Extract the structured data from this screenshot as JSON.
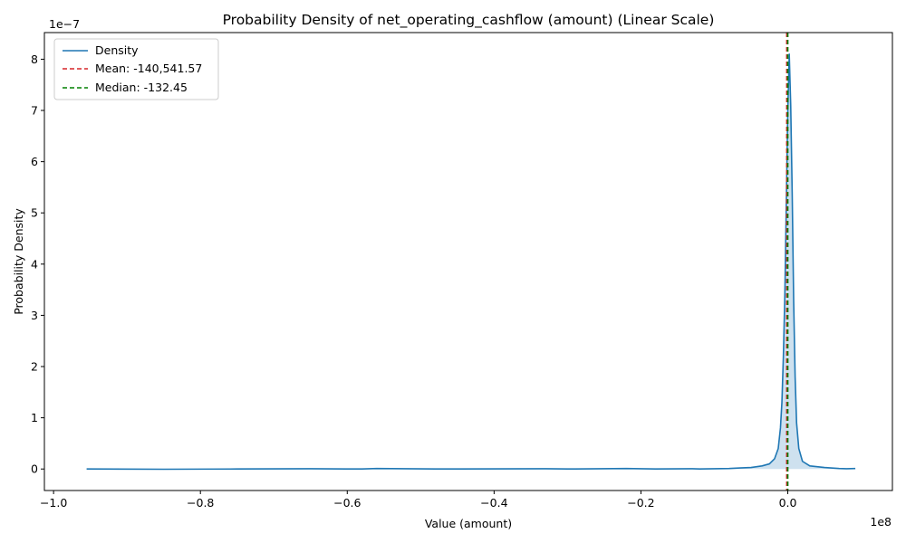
{
  "chart_data": {
    "type": "line",
    "title": "Probability Density of net_operating_cashflow (amount) (Linear Scale)",
    "xlabel": "Value (amount)",
    "ylabel": "Probability Density",
    "x_offset_text": "1e8",
    "y_offset_text": "1e−7",
    "xlim": [
      -1.0125,
      0.1425
    ],
    "ylim": [
      -0.42,
      8.52
    ],
    "x_ticks": [
      -1.0,
      -0.8,
      -0.6,
      -0.4,
      -0.2,
      0.0
    ],
    "x_tick_labels": [
      "−1.0",
      "−0.8",
      "−0.6",
      "−0.4",
      "−0.2",
      "0.0"
    ],
    "y_ticks": [
      0,
      1,
      2,
      3,
      4,
      5,
      6,
      7,
      8
    ],
    "y_tick_labels": [
      "0",
      "1",
      "2",
      "3",
      "4",
      "5",
      "6",
      "7",
      "8"
    ],
    "grid": false,
    "legend_position": "top-left",
    "series": [
      {
        "name": "Density",
        "color": "#1f77b4",
        "fill": true,
        "points": [
          [
            -0.955,
            0.0
          ],
          [
            -0.85,
            -0.005
          ],
          [
            -0.75,
            0.0
          ],
          [
            -0.65,
            0.005
          ],
          [
            -0.58,
            0.0
          ],
          [
            -0.56,
            0.01
          ],
          [
            -0.48,
            0.0
          ],
          [
            -0.33,
            0.005
          ],
          [
            -0.3,
            0.0
          ],
          [
            -0.22,
            0.01
          ],
          [
            -0.18,
            0.0
          ],
          [
            -0.13,
            0.005
          ],
          [
            -0.12,
            0.0
          ],
          [
            -0.08,
            0.01
          ],
          [
            -0.065,
            0.02
          ],
          [
            -0.05,
            0.03
          ],
          [
            -0.035,
            0.06
          ],
          [
            -0.025,
            0.1
          ],
          [
            -0.018,
            0.2
          ],
          [
            -0.013,
            0.4
          ],
          [
            -0.01,
            0.8
          ],
          [
            -0.008,
            1.3
          ],
          [
            -0.006,
            2.2
          ],
          [
            -0.004,
            3.4
          ],
          [
            -0.002,
            5.2
          ],
          [
            0.0,
            7.0
          ],
          [
            0.002,
            8.1
          ],
          [
            0.004,
            7.1
          ],
          [
            0.006,
            5.4
          ],
          [
            0.008,
            3.3
          ],
          [
            0.01,
            1.8
          ],
          [
            0.012,
            0.9
          ],
          [
            0.015,
            0.4
          ],
          [
            0.02,
            0.15
          ],
          [
            0.03,
            0.06
          ],
          [
            0.05,
            0.03
          ],
          [
            0.07,
            0.01
          ],
          [
            0.08,
            0.005
          ],
          [
            0.092,
            0.01
          ]
        ]
      }
    ],
    "reference_lines": [
      {
        "name": "Mean: -140,541.57",
        "x": -0.0014054157,
        "color": "#d62728"
      },
      {
        "name": "Median: -132.45",
        "x": -1.3245e-06,
        "color": "#008000"
      }
    ]
  }
}
